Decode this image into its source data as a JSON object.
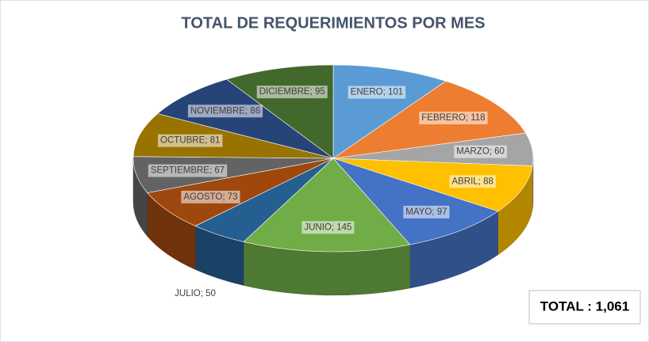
{
  "chart_data": {
    "type": "pie3d",
    "title": "TOTAL DE REQUERIMIENTOS POR MES",
    "categories": [
      "ENERO",
      "FEBRERO",
      "MARZO",
      "ABRIL",
      "MAYO",
      "JUNIO",
      "JULIO",
      "AGOSTO",
      "SEPTIEMBRE",
      "OCTUBRE",
      "NOVIEMBRE",
      "DICIEMBRE"
    ],
    "values": [
      101,
      118,
      60,
      88,
      97,
      145,
      50,
      73,
      67,
      81,
      86,
      95
    ],
    "value_labels": [
      "ENERO; 101",
      "FEBRERO; 118",
      "MARZO; 60",
      "ABRIL; 88",
      "MAYO; 97",
      "JUNIO; 145",
      "JULIO; 50",
      "AGOSTO; 73",
      "SEPTIEMBRE; 67",
      "OCTUBRE; 81",
      "NOVIEMBRE; 86",
      "DICIEMBRE; 95"
    ],
    "colors": [
      "#5b9bd5",
      "#ed7d31",
      "#a5a5a5",
      "#ffc000",
      "#4472c4",
      "#70ad47",
      "#255e91",
      "#9e480e",
      "#636363",
      "#997300",
      "#264478",
      "#43682b"
    ],
    "total_label": "TOTAL : 1,061"
  }
}
